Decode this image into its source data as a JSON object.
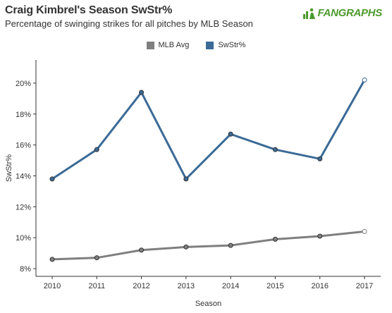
{
  "header": {
    "title": "Craig Kimbrel's Season SwStr%",
    "subtitle": "Percentage of swinging strikes for all pitches by MLB Season",
    "brand": "FANGRAPHS"
  },
  "colors": {
    "mlb_avg": "#7f7f7f",
    "swstr": "#3b6a96",
    "brand": "#4e9a2e"
  },
  "chart_data": {
    "type": "line",
    "x": [
      2010,
      2011,
      2012,
      2013,
      2014,
      2015,
      2016,
      2017
    ],
    "series": [
      {
        "name": "MLB Avg",
        "values": [
          8.6,
          8.7,
          9.2,
          9.4,
          9.5,
          9.9,
          10.1,
          10.4
        ]
      },
      {
        "name": "SwStr%",
        "values": [
          13.8,
          15.7,
          19.4,
          13.8,
          16.7,
          15.7,
          15.1,
          20.2
        ]
      }
    ],
    "xlabel": "Season",
    "ylabel": "SwStr%",
    "ylim": [
      7.5,
      21.5
    ],
    "yticks": [
      8,
      10,
      12,
      14,
      16,
      18,
      20
    ],
    "ytick_labels": [
      "8%",
      "10%",
      "12%",
      "14%",
      "16%",
      "18%",
      "20%"
    ],
    "xtick_labels": [
      "2010",
      "2011",
      "2012",
      "2013",
      "2014",
      "2015",
      "2016",
      "2017"
    ],
    "grid": false,
    "legend": "top-center"
  }
}
